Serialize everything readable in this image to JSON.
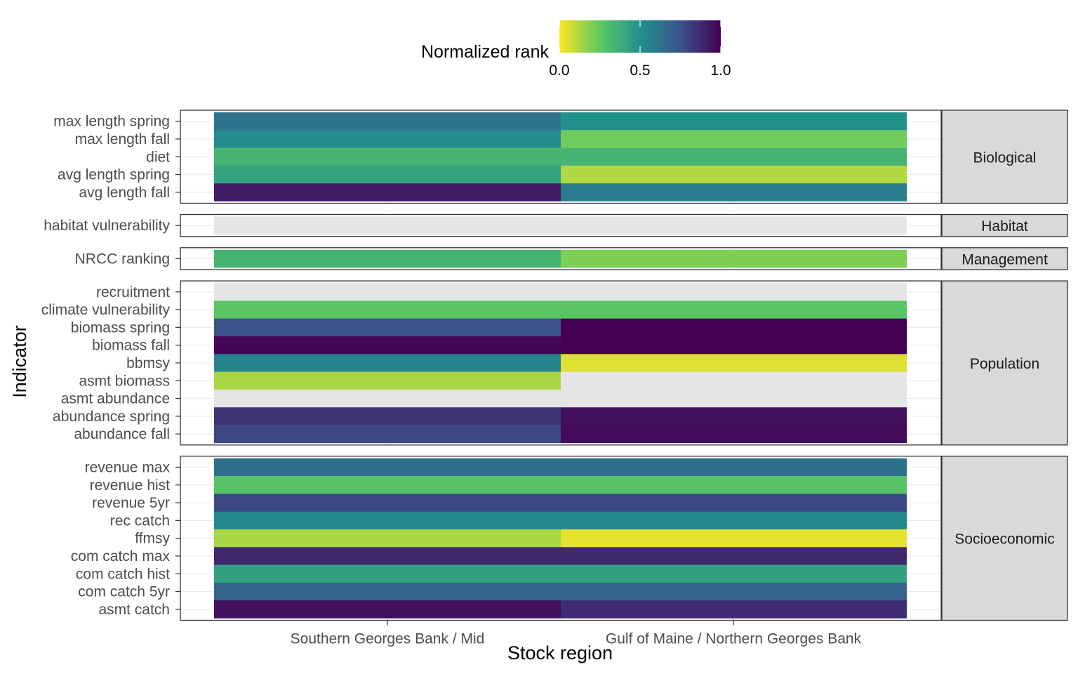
{
  "chart_data": {
    "type": "heatmap",
    "xlabel": "Stock region",
    "ylabel": "Indicator",
    "x_categories": [
      "Southern Georges Bank / Mid",
      "Gulf of Maine / Northern Georges Bank"
    ],
    "legend": {
      "title": "Normalized rank",
      "placement": "top",
      "range": [
        0,
        1
      ],
      "ticks": [
        "0.0",
        "0.5",
        "1.0"
      ],
      "palette": [
        "#fde725",
        "#5ec962",
        "#21918c",
        "#3b528b",
        "#440154"
      ]
    },
    "missing_color": "#e5e5e5",
    "grid": true,
    "facets": [
      {
        "label": "Biological",
        "rows": [
          {
            "indicator": "max length spring",
            "values": [
              0.62,
              0.5
            ]
          },
          {
            "indicator": "max length fall",
            "values": [
              0.52,
              0.22
            ]
          },
          {
            "indicator": "diet",
            "values": [
              0.35,
              0.35
            ]
          },
          {
            "indicator": "avg length spring",
            "values": [
              0.42,
              0.12
            ]
          },
          {
            "indicator": "avg length fall",
            "values": [
              0.92,
              0.58
            ]
          }
        ]
      },
      {
        "label": "Habitat",
        "rows": [
          {
            "indicator": "habitat vulnerability",
            "values": [
              null,
              null
            ]
          }
        ]
      },
      {
        "label": "Management",
        "rows": [
          {
            "indicator": "NRCC ranking",
            "values": [
              0.35,
              0.2
            ]
          }
        ]
      },
      {
        "label": "Population",
        "rows": [
          {
            "indicator": "recruitment",
            "values": [
              null,
              null
            ]
          },
          {
            "indicator": "climate vulnerability",
            "values": [
              0.27,
              0.27
            ]
          },
          {
            "indicator": "biomass spring",
            "values": [
              0.75,
              1.0
            ]
          },
          {
            "indicator": "biomass fall",
            "values": [
              0.98,
              1.0
            ]
          },
          {
            "indicator": "bbmsy",
            "values": [
              0.55,
              0.05
            ]
          },
          {
            "indicator": "asmt biomass",
            "values": [
              0.13,
              null
            ]
          },
          {
            "indicator": "asmt abundance",
            "values": [
              null,
              null
            ]
          },
          {
            "indicator": "abundance spring",
            "values": [
              0.85,
              0.95
            ]
          },
          {
            "indicator": "abundance fall",
            "values": [
              0.78,
              0.97
            ]
          }
        ]
      },
      {
        "label": "Socioeconomic",
        "rows": [
          {
            "indicator": "revenue max",
            "values": [
              0.63,
              0.63
            ]
          },
          {
            "indicator": "revenue hist",
            "values": [
              0.28,
              0.28
            ]
          },
          {
            "indicator": "revenue 5yr",
            "values": [
              0.78,
              0.78
            ]
          },
          {
            "indicator": "rec catch",
            "values": [
              0.53,
              0.53
            ]
          },
          {
            "indicator": "ffmsy",
            "values": [
              0.13,
              0.04
            ]
          },
          {
            "indicator": "com catch max",
            "values": [
              0.88,
              0.88
            ]
          },
          {
            "indicator": "com catch hist",
            "values": [
              0.43,
              0.43
            ]
          },
          {
            "indicator": "com catch 5yr",
            "values": [
              0.68,
              0.68
            ]
          },
          {
            "indicator": "asmt catch",
            "values": [
              0.95,
              0.87
            ]
          }
        ]
      }
    ]
  }
}
